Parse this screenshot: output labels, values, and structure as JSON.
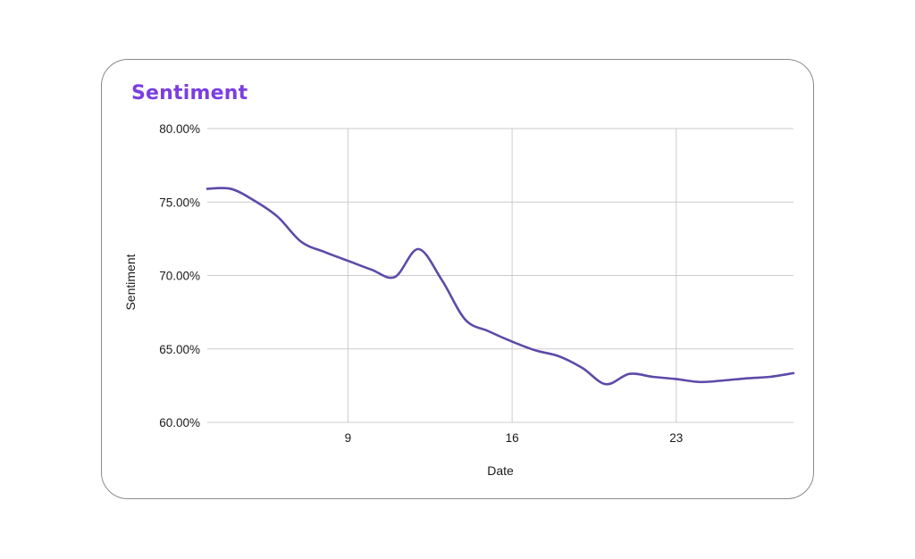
{
  "title": "Sentiment",
  "chart_data": {
    "type": "line",
    "title": "Sentiment",
    "xlabel": "Date",
    "ylabel": "Sentiment",
    "x_tick_labels": [
      "9",
      "16",
      "23"
    ],
    "x_ticks": [
      9,
      16,
      23
    ],
    "xlim": [
      3,
      28
    ],
    "ylim": [
      60,
      80
    ],
    "y_tick_labels": [
      "60.00%",
      "65.00%",
      "70.00%",
      "75.00%",
      "80.00%"
    ],
    "y_ticks": [
      60,
      65,
      70,
      75,
      80
    ],
    "grid": true,
    "legend": "none",
    "line_color": "#5e4aa8",
    "series": [
      {
        "x": [
          3,
          4,
          5,
          6,
          7,
          8,
          9,
          10,
          11,
          12,
          13,
          14,
          15,
          16,
          17,
          18,
          19,
          20,
          21,
          22,
          23,
          24,
          25,
          26,
          27,
          28
        ],
        "values": [
          75.9,
          75.9,
          75.1,
          74.0,
          72.3,
          71.6,
          71.0,
          70.4,
          69.9,
          71.8,
          69.7,
          67.0,
          66.2,
          65.5,
          64.9,
          64.5,
          63.7,
          62.6,
          63.3,
          63.1,
          62.95,
          62.75,
          62.85,
          63.0,
          63.1,
          63.35
        ]
      }
    ]
  }
}
